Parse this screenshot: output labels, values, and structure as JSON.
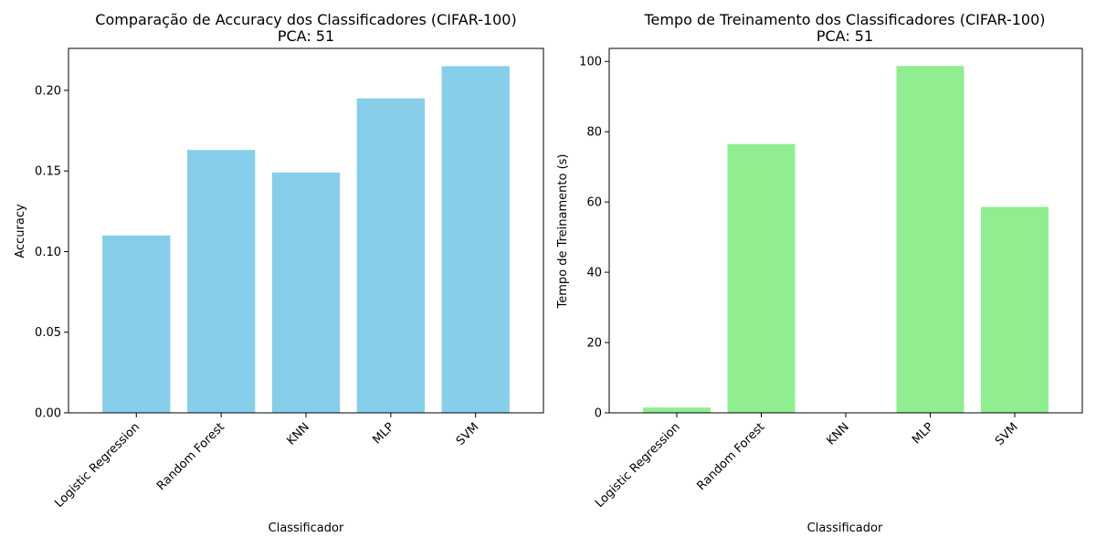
{
  "chart_data": [
    {
      "type": "bar",
      "title": "Comparação de Accuracy dos Classificadores (CIFAR-100)",
      "subtitle": "PCA: 51",
      "xlabel": "Classificador",
      "ylabel": "Accuracy",
      "categories": [
        "Logistic Regression",
        "Random Forest",
        "KNN",
        "MLP",
        "SVM"
      ],
      "values": [
        0.11,
        0.163,
        0.149,
        0.195,
        0.215
      ],
      "ylim": [
        0,
        0.226
      ],
      "yticks": [
        0.0,
        0.05,
        0.1,
        0.15,
        0.2
      ],
      "ytick_labels": [
        "0.00",
        "0.05",
        "0.10",
        "0.15",
        "0.20"
      ],
      "color": "#87CEEB",
      "grid": false
    },
    {
      "type": "bar",
      "title": "Tempo de Treinamento dos Classificadores (CIFAR-100)",
      "subtitle": "PCA: 51",
      "xlabel": "Classificador",
      "ylabel": "Tempo de Treinamento (s)",
      "categories": [
        "Logistic Regression",
        "Random Forest",
        "KNN",
        "MLP",
        "SVM"
      ],
      "values": [
        1.5,
        76.5,
        0.05,
        98.7,
        58.6
      ],
      "ylim": [
        0,
        103.7
      ],
      "yticks": [
        0,
        20,
        40,
        60,
        80,
        100
      ],
      "ytick_labels": [
        "0",
        "20",
        "40",
        "60",
        "80",
        "100"
      ],
      "color": "#90EE90",
      "grid": false
    }
  ]
}
